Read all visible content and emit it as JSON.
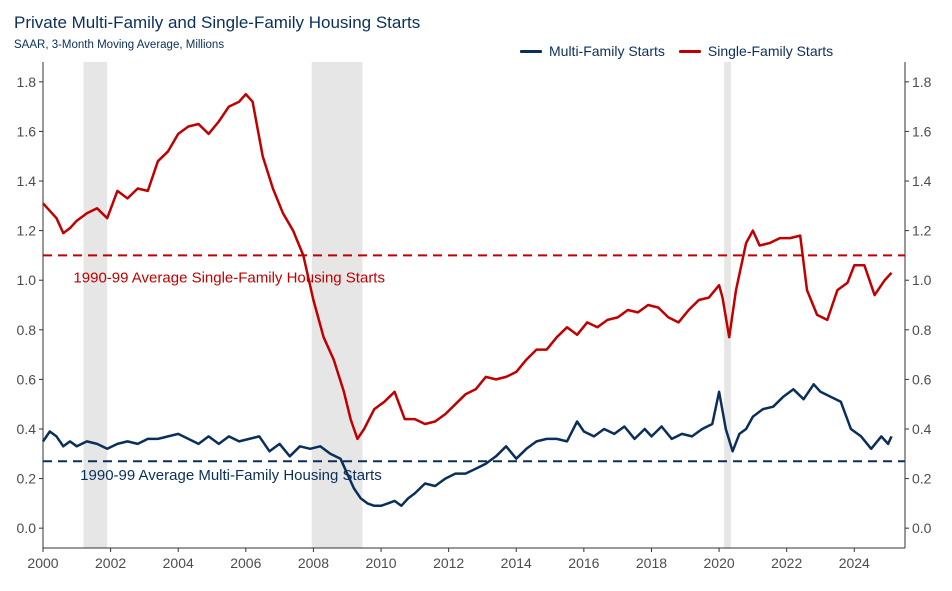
{
  "title": "Private Multi-Family and Single-Family Housing Starts",
  "subtitle": "SAAR, 3-Month Moving Average, Millions",
  "chart_data": {
    "type": "line",
    "legend_placement": "top-right",
    "grid": false,
    "xlim": [
      2000,
      2025.5
    ],
    "ylim": [
      -0.08,
      1.88
    ],
    "x_ticks": [
      2000,
      2002,
      2004,
      2006,
      2008,
      2010,
      2012,
      2014,
      2016,
      2018,
      2020,
      2022,
      2024
    ],
    "y_ticks": [
      0.0,
      0.2,
      0.4,
      0.6,
      0.8,
      1.0,
      1.2,
      1.4,
      1.6,
      1.8
    ],
    "x_tick_labels": [
      "2000",
      "2002",
      "2004",
      "2006",
      "2008",
      "2010",
      "2012",
      "2014",
      "2016",
      "2018",
      "2020",
      "2022",
      "2024"
    ],
    "y_tick_labels": [
      "0.0",
      "0.2",
      "0.4",
      "0.6",
      "0.8",
      "1.0",
      "1.2",
      "1.4",
      "1.6",
      "1.8"
    ],
    "colors": {
      "multi": "#0b2f5b",
      "single": "#c00000",
      "recession": "#e6e6e6"
    },
    "recessions": [
      [
        2001.2,
        2001.9
      ],
      [
        2007.95,
        2009.45
      ],
      [
        2020.15,
        2020.35
      ]
    ],
    "reference_lines": [
      {
        "name": "single_avg",
        "y": 1.1,
        "label": "1990-99 Average Single-Family Housing Starts",
        "label_at": [
          2000.9,
          0.99
        ]
      },
      {
        "name": "multi_avg",
        "y": 0.27,
        "label": "1990-99 Average Multi-Family Housing Starts",
        "label_at": [
          2001.1,
          0.195
        ]
      }
    ],
    "series": [
      {
        "name": "Multi-Family Starts",
        "x": [
          2000,
          2000.2,
          2000.4,
          2000.6,
          2000.8,
          2001.0,
          2001.3,
          2001.6,
          2001.9,
          2002.2,
          2002.5,
          2002.8,
          2003.1,
          2003.4,
          2003.7,
          2004.0,
          2004.3,
          2004.6,
          2004.9,
          2005.2,
          2005.5,
          2005.8,
          2006.1,
          2006.4,
          2006.7,
          2007.0,
          2007.3,
          2007.6,
          2007.9,
          2008.2,
          2008.5,
          2008.8,
          2009.0,
          2009.2,
          2009.4,
          2009.6,
          2009.8,
          2010.0,
          2010.2,
          2010.4,
          2010.6,
          2010.8,
          2011.0,
          2011.3,
          2011.6,
          2011.9,
          2012.2,
          2012.5,
          2012.8,
          2013.1,
          2013.4,
          2013.7,
          2014.0,
          2014.3,
          2014.6,
          2014.9,
          2015.2,
          2015.5,
          2015.8,
          2016.0,
          2016.3,
          2016.6,
          2016.9,
          2017.2,
          2017.5,
          2017.8,
          2018.0,
          2018.3,
          2018.6,
          2018.9,
          2019.2,
          2019.5,
          2019.8,
          2020.0,
          2020.2,
          2020.4,
          2020.6,
          2020.8,
          2021.0,
          2021.3,
          2021.6,
          2021.9,
          2022.2,
          2022.5,
          2022.8,
          2023.0,
          2023.3,
          2023.6,
          2023.9,
          2024.2,
          2024.5,
          2024.8,
          2025.0,
          2025.1
        ],
        "y": [
          0.35,
          0.39,
          0.37,
          0.33,
          0.35,
          0.33,
          0.35,
          0.34,
          0.32,
          0.34,
          0.35,
          0.34,
          0.36,
          0.36,
          0.37,
          0.38,
          0.36,
          0.34,
          0.37,
          0.34,
          0.37,
          0.35,
          0.36,
          0.37,
          0.31,
          0.34,
          0.29,
          0.33,
          0.32,
          0.33,
          0.3,
          0.28,
          0.22,
          0.16,
          0.12,
          0.1,
          0.09,
          0.09,
          0.1,
          0.11,
          0.09,
          0.12,
          0.14,
          0.18,
          0.17,
          0.2,
          0.22,
          0.22,
          0.24,
          0.26,
          0.29,
          0.33,
          0.28,
          0.32,
          0.35,
          0.36,
          0.36,
          0.35,
          0.43,
          0.39,
          0.37,
          0.4,
          0.38,
          0.41,
          0.36,
          0.4,
          0.37,
          0.41,
          0.36,
          0.38,
          0.37,
          0.4,
          0.42,
          0.55,
          0.4,
          0.31,
          0.38,
          0.4,
          0.45,
          0.48,
          0.49,
          0.53,
          0.56,
          0.52,
          0.58,
          0.55,
          0.53,
          0.51,
          0.4,
          0.37,
          0.32,
          0.37,
          0.34,
          0.37
        ]
      },
      {
        "name": "Single-Family Starts",
        "x": [
          2000,
          2000.2,
          2000.4,
          2000.6,
          2000.8,
          2001.0,
          2001.3,
          2001.6,
          2001.9,
          2002.2,
          2002.5,
          2002.8,
          2003.1,
          2003.4,
          2003.7,
          2004.0,
          2004.3,
          2004.6,
          2004.9,
          2005.2,
          2005.5,
          2005.8,
          2006.0,
          2006.2,
          2006.5,
          2006.8,
          2007.1,
          2007.4,
          2007.7,
          2008.0,
          2008.3,
          2008.6,
          2008.9,
          2009.1,
          2009.3,
          2009.5,
          2009.8,
          2010.1,
          2010.4,
          2010.7,
          2011.0,
          2011.3,
          2011.6,
          2011.9,
          2012.2,
          2012.5,
          2012.8,
          2013.1,
          2013.4,
          2013.7,
          2014.0,
          2014.3,
          2014.6,
          2014.9,
          2015.2,
          2015.5,
          2015.8,
          2016.1,
          2016.4,
          2016.7,
          2017.0,
          2017.3,
          2017.6,
          2017.9,
          2018.2,
          2018.5,
          2018.8,
          2019.1,
          2019.4,
          2019.7,
          2020.0,
          2020.1,
          2020.3,
          2020.5,
          2020.8,
          2021.0,
          2021.2,
          2021.5,
          2021.8,
          2022.1,
          2022.4,
          2022.6,
          2022.9,
          2023.2,
          2023.5,
          2023.8,
          2024.0,
          2024.3,
          2024.6,
          2024.9,
          2025.1
        ],
        "y": [
          1.31,
          1.28,
          1.25,
          1.19,
          1.21,
          1.24,
          1.27,
          1.29,
          1.25,
          1.36,
          1.33,
          1.37,
          1.36,
          1.48,
          1.52,
          1.59,
          1.62,
          1.63,
          1.59,
          1.64,
          1.7,
          1.72,
          1.75,
          1.72,
          1.5,
          1.37,
          1.27,
          1.2,
          1.1,
          0.92,
          0.77,
          0.68,
          0.55,
          0.44,
          0.36,
          0.4,
          0.48,
          0.51,
          0.55,
          0.44,
          0.44,
          0.42,
          0.43,
          0.46,
          0.5,
          0.54,
          0.56,
          0.61,
          0.6,
          0.61,
          0.63,
          0.68,
          0.72,
          0.72,
          0.77,
          0.81,
          0.78,
          0.83,
          0.81,
          0.84,
          0.85,
          0.88,
          0.87,
          0.9,
          0.89,
          0.85,
          0.83,
          0.88,
          0.92,
          0.93,
          0.98,
          0.93,
          0.77,
          0.96,
          1.15,
          1.2,
          1.14,
          1.15,
          1.17,
          1.17,
          1.18,
          0.96,
          0.86,
          0.84,
          0.96,
          0.99,
          1.06,
          1.06,
          0.94,
          1.0,
          1.03
        ]
      }
    ]
  }
}
